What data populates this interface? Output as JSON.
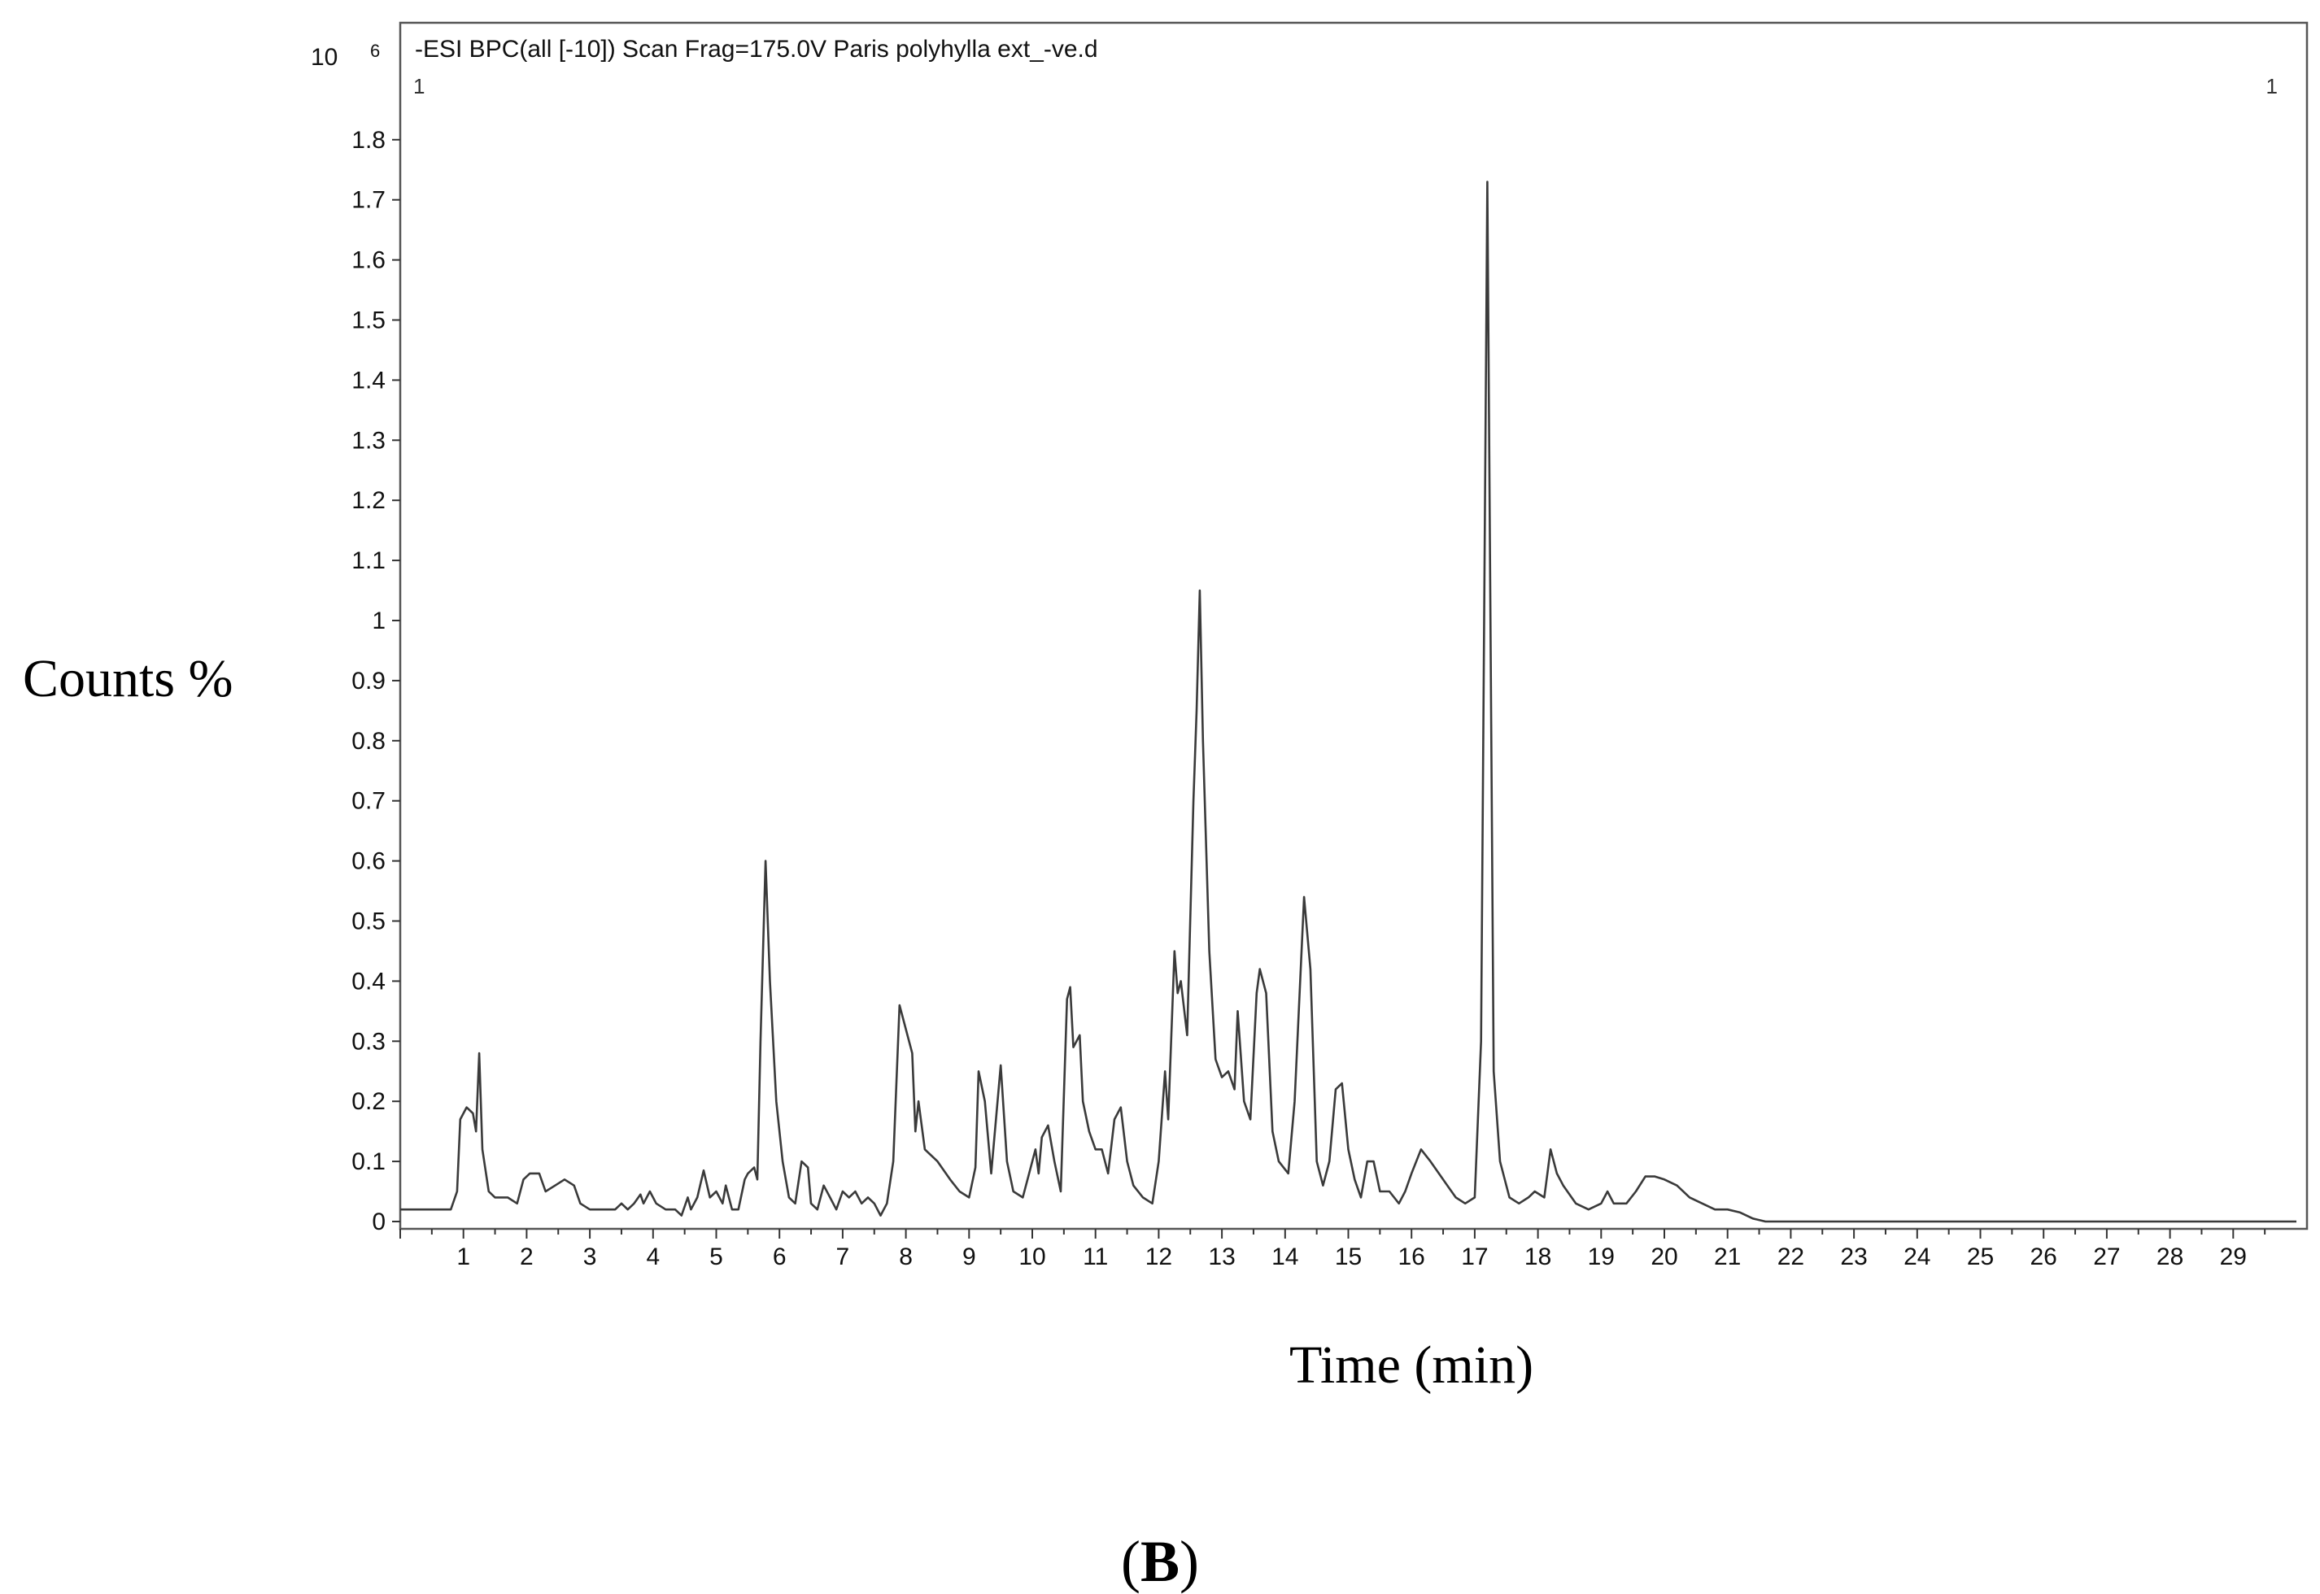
{
  "chart_data": {
    "type": "line",
    "title": "-ESI BPC(all [-10]) Scan Frag=175.0V Paris polyhylla ext_-ve.d",
    "corner_left": "1",
    "corner_right": "1",
    "y_multiplier_base": "10",
    "y_multiplier_exp": "6",
    "xlabel": "Time (min)",
    "ylabel": "Counts %",
    "panel_label": "B",
    "xlim": [
      0,
      30
    ],
    "ylim": [
      0,
      2.0
    ],
    "xticks": [
      "1",
      "2",
      "3",
      "4",
      "5",
      "6",
      "7",
      "8",
      "9",
      "10",
      "11",
      "12",
      "13",
      "14",
      "15",
      "16",
      "17",
      "18",
      "19",
      "20",
      "21",
      "22",
      "23",
      "24",
      "25",
      "26",
      "27",
      "28",
      "29"
    ],
    "yticks": [
      "0",
      "0.1",
      "0.2",
      "0.3",
      "0.4",
      "0.5",
      "0.6",
      "0.7",
      "0.8",
      "0.9",
      "1",
      "1.1",
      "1.2",
      "1.3",
      "1.4",
      "1.5",
      "1.6",
      "1.7",
      "1.8"
    ],
    "grid": false,
    "series": [
      {
        "color": "#3a3a3a",
        "points": [
          [
            0.0,
            0.02
          ],
          [
            0.3,
            0.02
          ],
          [
            0.6,
            0.02
          ],
          [
            0.8,
            0.02
          ],
          [
            0.9,
            0.05
          ],
          [
            0.95,
            0.17
          ],
          [
            1.05,
            0.19
          ],
          [
            1.15,
            0.18
          ],
          [
            1.2,
            0.15
          ],
          [
            1.25,
            0.28
          ],
          [
            1.3,
            0.12
          ],
          [
            1.4,
            0.05
          ],
          [
            1.5,
            0.04
          ],
          [
            1.7,
            0.04
          ],
          [
            1.85,
            0.03
          ],
          [
            1.95,
            0.07
          ],
          [
            2.05,
            0.08
          ],
          [
            2.2,
            0.08
          ],
          [
            2.3,
            0.05
          ],
          [
            2.45,
            0.06
          ],
          [
            2.6,
            0.07
          ],
          [
            2.75,
            0.06
          ],
          [
            2.85,
            0.03
          ],
          [
            3.0,
            0.02
          ],
          [
            3.2,
            0.02
          ],
          [
            3.4,
            0.02
          ],
          [
            3.5,
            0.03
          ],
          [
            3.6,
            0.02
          ],
          [
            3.7,
            0.03
          ],
          [
            3.8,
            0.045
          ],
          [
            3.85,
            0.03
          ],
          [
            3.95,
            0.05
          ],
          [
            4.05,
            0.03
          ],
          [
            4.2,
            0.02
          ],
          [
            4.35,
            0.02
          ],
          [
            4.45,
            0.01
          ],
          [
            4.55,
            0.04
          ],
          [
            4.6,
            0.02
          ],
          [
            4.7,
            0.04
          ],
          [
            4.8,
            0.085
          ],
          [
            4.9,
            0.04
          ],
          [
            5.0,
            0.05
          ],
          [
            5.1,
            0.03
          ],
          [
            5.15,
            0.06
          ],
          [
            5.25,
            0.02
          ],
          [
            5.35,
            0.02
          ],
          [
            5.45,
            0.07
          ],
          [
            5.5,
            0.08
          ],
          [
            5.6,
            0.09
          ],
          [
            5.65,
            0.07
          ],
          [
            5.7,
            0.3
          ],
          [
            5.78,
            0.6
          ],
          [
            5.85,
            0.4
          ],
          [
            5.95,
            0.2
          ],
          [
            6.05,
            0.1
          ],
          [
            6.15,
            0.04
          ],
          [
            6.25,
            0.03
          ],
          [
            6.35,
            0.1
          ],
          [
            6.45,
            0.09
          ],
          [
            6.5,
            0.03
          ],
          [
            6.6,
            0.02
          ],
          [
            6.7,
            0.06
          ],
          [
            6.8,
            0.04
          ],
          [
            6.9,
            0.02
          ],
          [
            7.0,
            0.05
          ],
          [
            7.1,
            0.04
          ],
          [
            7.2,
            0.05
          ],
          [
            7.3,
            0.03
          ],
          [
            7.4,
            0.04
          ],
          [
            7.5,
            0.03
          ],
          [
            7.6,
            0.01
          ],
          [
            7.7,
            0.03
          ],
          [
            7.8,
            0.1
          ],
          [
            7.9,
            0.36
          ],
          [
            8.0,
            0.32
          ],
          [
            8.1,
            0.28
          ],
          [
            8.15,
            0.15
          ],
          [
            8.2,
            0.2
          ],
          [
            8.3,
            0.12
          ],
          [
            8.5,
            0.1
          ],
          [
            8.7,
            0.07
          ],
          [
            8.85,
            0.05
          ],
          [
            9.0,
            0.04
          ],
          [
            9.1,
            0.09
          ],
          [
            9.15,
            0.25
          ],
          [
            9.25,
            0.2
          ],
          [
            9.35,
            0.08
          ],
          [
            9.5,
            0.26
          ],
          [
            9.6,
            0.1
          ],
          [
            9.7,
            0.05
          ],
          [
            9.85,
            0.04
          ],
          [
            9.95,
            0.08
          ],
          [
            10.05,
            0.12
          ],
          [
            10.1,
            0.08
          ],
          [
            10.15,
            0.14
          ],
          [
            10.25,
            0.16
          ],
          [
            10.35,
            0.1
          ],
          [
            10.45,
            0.05
          ],
          [
            10.55,
            0.37
          ],
          [
            10.6,
            0.39
          ],
          [
            10.65,
            0.29
          ],
          [
            10.75,
            0.31
          ],
          [
            10.8,
            0.2
          ],
          [
            10.9,
            0.15
          ],
          [
            11.0,
            0.12
          ],
          [
            11.1,
            0.12
          ],
          [
            11.2,
            0.08
          ],
          [
            11.3,
            0.17
          ],
          [
            11.4,
            0.19
          ],
          [
            11.5,
            0.1
          ],
          [
            11.6,
            0.06
          ],
          [
            11.75,
            0.04
          ],
          [
            11.9,
            0.03
          ],
          [
            12.0,
            0.1
          ],
          [
            12.1,
            0.25
          ],
          [
            12.15,
            0.17
          ],
          [
            12.25,
            0.45
          ],
          [
            12.3,
            0.38
          ],
          [
            12.35,
            0.4
          ],
          [
            12.45,
            0.31
          ],
          [
            12.55,
            0.7
          ],
          [
            12.6,
            0.85
          ],
          [
            12.65,
            1.05
          ],
          [
            12.7,
            0.8
          ],
          [
            12.8,
            0.45
          ],
          [
            12.9,
            0.27
          ],
          [
            13.0,
            0.24
          ],
          [
            13.1,
            0.25
          ],
          [
            13.2,
            0.22
          ],
          [
            13.25,
            0.35
          ],
          [
            13.35,
            0.2
          ],
          [
            13.45,
            0.17
          ],
          [
            13.55,
            0.38
          ],
          [
            13.6,
            0.42
          ],
          [
            13.7,
            0.38
          ],
          [
            13.8,
            0.15
          ],
          [
            13.9,
            0.1
          ],
          [
            14.05,
            0.08
          ],
          [
            14.15,
            0.2
          ],
          [
            14.3,
            0.54
          ],
          [
            14.4,
            0.42
          ],
          [
            14.5,
            0.1
          ],
          [
            14.6,
            0.06
          ],
          [
            14.7,
            0.1
          ],
          [
            14.8,
            0.22
          ],
          [
            14.9,
            0.23
          ],
          [
            15.0,
            0.12
          ],
          [
            15.1,
            0.07
          ],
          [
            15.2,
            0.04
          ],
          [
            15.3,
            0.1
          ],
          [
            15.4,
            0.1
          ],
          [
            15.5,
            0.05
          ],
          [
            15.65,
            0.05
          ],
          [
            15.8,
            0.03
          ],
          [
            15.9,
            0.05
          ],
          [
            16.0,
            0.08
          ],
          [
            16.15,
            0.12
          ],
          [
            16.3,
            0.1
          ],
          [
            16.5,
            0.07
          ],
          [
            16.7,
            0.04
          ],
          [
            16.85,
            0.03
          ],
          [
            17.0,
            0.04
          ],
          [
            17.1,
            0.3
          ],
          [
            17.2,
            1.73
          ],
          [
            17.3,
            0.25
          ],
          [
            17.4,
            0.1
          ],
          [
            17.55,
            0.04
          ],
          [
            17.7,
            0.03
          ],
          [
            17.85,
            0.04
          ],
          [
            17.95,
            0.05
          ],
          [
            18.1,
            0.04
          ],
          [
            18.2,
            0.12
          ],
          [
            18.3,
            0.08
          ],
          [
            18.4,
            0.06
          ],
          [
            18.6,
            0.03
          ],
          [
            18.8,
            0.02
          ],
          [
            19.0,
            0.03
          ],
          [
            19.1,
            0.05
          ],
          [
            19.2,
            0.03
          ],
          [
            19.4,
            0.03
          ],
          [
            19.55,
            0.05
          ],
          [
            19.7,
            0.075
          ],
          [
            19.85,
            0.075
          ],
          [
            20.0,
            0.07
          ],
          [
            20.2,
            0.06
          ],
          [
            20.4,
            0.04
          ],
          [
            20.6,
            0.03
          ],
          [
            20.8,
            0.02
          ],
          [
            21.0,
            0.02
          ],
          [
            21.2,
            0.015
          ],
          [
            21.4,
            0.005
          ],
          [
            21.6,
            0.0
          ],
          [
            22.0,
            0.0
          ],
          [
            25.0,
            0.0
          ],
          [
            28.0,
            0.0
          ],
          [
            30.0,
            0.0
          ]
        ]
      }
    ]
  }
}
